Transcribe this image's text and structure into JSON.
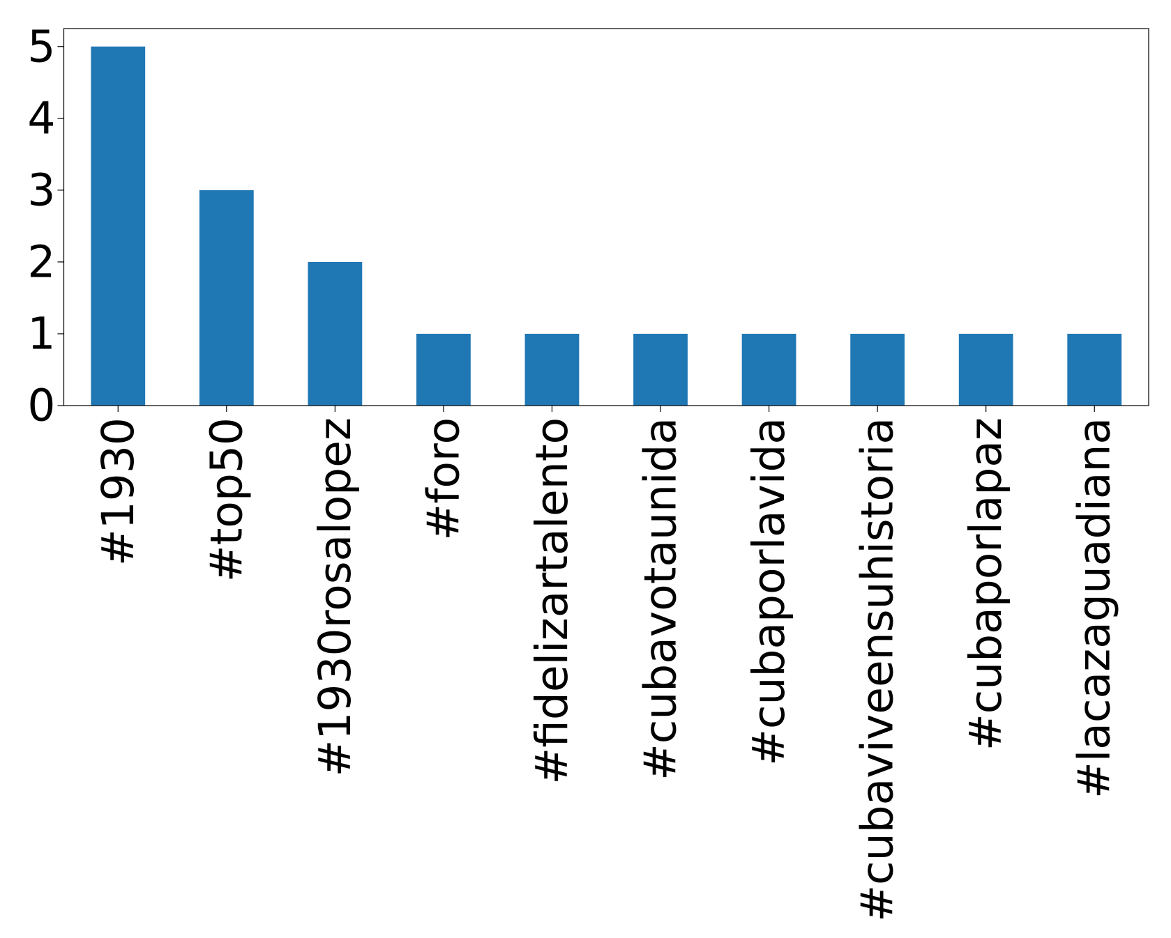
{
  "chart_data": {
    "type": "bar",
    "categories": [
      "#1930",
      "#top50",
      "#1930rosalopez",
      "#foro",
      "#fidelizartalento",
      "#cubavotaunida",
      "#cubaporlavida",
      "#cubaviveensuhistoria",
      "#cubaporlapaz",
      "#lacazaguadiana"
    ],
    "values": [
      5,
      3,
      2,
      1,
      1,
      1,
      1,
      1,
      1,
      1
    ],
    "color": "#1f77b4",
    "ylim": [
      0,
      5.25
    ],
    "yticks": [
      0,
      1,
      2,
      3,
      4,
      5
    ],
    "grid": false
  }
}
